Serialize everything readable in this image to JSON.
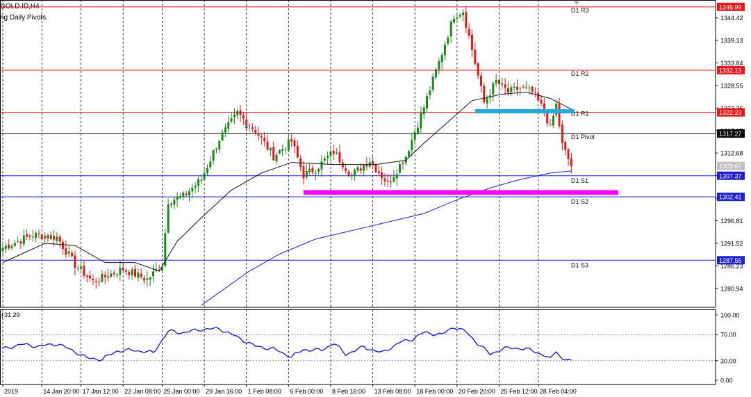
{
  "header": {
    "symbol_label": "GOLD.ID,H4",
    "indicator_label": "ng Daily Pivots."
  },
  "colors": {
    "up_candle": "#1a8a1a",
    "down_candle": "#e8181a",
    "resistance": "#e8181a",
    "support": "#1f1fd0",
    "pivot": "#000000",
    "ma_fast": "#111111",
    "ma_slow": "#1f1fd0",
    "rsi_line": "#1f1fd0",
    "zone_resistance": "#2aa8d8",
    "zone_support": "#ff00ff",
    "grid": "#000000"
  },
  "chart_data": [
    {
      "type": "candlestick",
      "title": "GOLD.ID,H4",
      "ylim": [
        1276.5,
        1348.6
      ],
      "price_ticks": [
        1344.42,
        1339.13,
        1333.84,
        1328.55,
        1323.26,
        1317.97,
        1312.68,
        1307.39,
        1302.1,
        1296.81,
        1291.52,
        1286.23,
        1280.94
      ],
      "pivots": [
        {
          "label": "D1 R3",
          "value": 1346.99,
          "kind": "resistance"
        },
        {
          "label": "D1 R2",
          "value": 1332.13,
          "kind": "resistance"
        },
        {
          "label": "D1 R1",
          "value": 1322.23,
          "kind": "resistance"
        },
        {
          "label": "D1 Pivot",
          "value": 1317.27,
          "kind": "pivot"
        },
        {
          "label": "D1 S1",
          "value": 1307.37,
          "kind": "support"
        },
        {
          "label": "D1 S2",
          "value": 1302.41,
          "kind": "support"
        },
        {
          "label": "D1 S3",
          "value": 1287.55,
          "kind": "support"
        }
      ],
      "current_price": "1309.67",
      "zones": [
        {
          "name": "resistance-zone",
          "price_low": 1322.0,
          "price_high": 1323.0
        },
        {
          "name": "support-zone",
          "price_low": 1302.9,
          "price_high": 1304.0
        }
      ],
      "anchors": [
        {
          "bar": 0,
          "price": 1290.5
        },
        {
          "bar": 10,
          "price": 1293.5
        },
        {
          "bar": 18,
          "price": 1293.0
        },
        {
          "bar": 24,
          "price": 1286.5
        },
        {
          "bar": 30,
          "price": 1282.5
        },
        {
          "bar": 40,
          "price": 1285.5
        },
        {
          "bar": 48,
          "price": 1283.0
        },
        {
          "bar": 53,
          "price": 1286.5
        },
        {
          "bar": 55,
          "price": 1301.5
        },
        {
          "bar": 60,
          "price": 1302.5
        },
        {
          "bar": 66,
          "price": 1306.5
        },
        {
          "bar": 72,
          "price": 1316.0
        },
        {
          "bar": 78,
          "price": 1322.0
        },
        {
          "bar": 84,
          "price": 1318.0
        },
        {
          "bar": 90,
          "price": 1312.0
        },
        {
          "bar": 96,
          "price": 1315.5
        },
        {
          "bar": 100,
          "price": 1307.5
        },
        {
          "bar": 104,
          "price": 1309.0
        },
        {
          "bar": 110,
          "price": 1313.0
        },
        {
          "bar": 116,
          "price": 1307.5
        },
        {
          "bar": 122,
          "price": 1311.0
        },
        {
          "bar": 128,
          "price": 1305.5
        },
        {
          "bar": 134,
          "price": 1312.0
        },
        {
          "bar": 140,
          "price": 1323.5
        },
        {
          "bar": 145,
          "price": 1334.0
        },
        {
          "bar": 150,
          "price": 1345.0
        },
        {
          "bar": 153,
          "price": 1346.0
        },
        {
          "bar": 156,
          "price": 1337.0
        },
        {
          "bar": 160,
          "price": 1324.5
        },
        {
          "bar": 164,
          "price": 1329.5
        },
        {
          "bar": 168,
          "price": 1327.0
        },
        {
          "bar": 172,
          "price": 1328.0
        },
        {
          "bar": 176,
          "price": 1327.0
        },
        {
          "bar": 180,
          "price": 1322.5
        },
        {
          "bar": 182,
          "price": 1318.5
        },
        {
          "bar": 184,
          "price": 1324.0
        },
        {
          "bar": 186,
          "price": 1314.5
        },
        {
          "bar": 189,
          "price": 1309.7
        }
      ],
      "ma_fast": [
        {
          "bar": 0,
          "price": 1287.0
        },
        {
          "bar": 14,
          "price": 1291.5
        },
        {
          "bar": 24,
          "price": 1291.0
        },
        {
          "bar": 34,
          "price": 1287.0
        },
        {
          "bar": 44,
          "price": 1287.0
        },
        {
          "bar": 52,
          "price": 1285.0
        },
        {
          "bar": 58,
          "price": 1292.0
        },
        {
          "bar": 66,
          "price": 1297.5
        },
        {
          "bar": 76,
          "price": 1304.0
        },
        {
          "bar": 86,
          "price": 1308.0
        },
        {
          "bar": 96,
          "price": 1310.5
        },
        {
          "bar": 110,
          "price": 1310.0
        },
        {
          "bar": 124,
          "price": 1310.0
        },
        {
          "bar": 134,
          "price": 1311.0
        },
        {
          "bar": 140,
          "price": 1315.0
        },
        {
          "bar": 148,
          "price": 1320.0
        },
        {
          "bar": 156,
          "price": 1325.0
        },
        {
          "bar": 166,
          "price": 1326.5
        },
        {
          "bar": 174,
          "price": 1327.0
        },
        {
          "bar": 182,
          "price": 1325.5
        },
        {
          "bar": 189,
          "price": 1323.0
        }
      ],
      "ma_slow": [
        {
          "bar": 66,
          "price": 1277.0
        },
        {
          "bar": 74,
          "price": 1281.0
        },
        {
          "bar": 82,
          "price": 1285.0
        },
        {
          "bar": 92,
          "price": 1289.0
        },
        {
          "bar": 104,
          "price": 1292.5
        },
        {
          "bar": 116,
          "price": 1294.5
        },
        {
          "bar": 128,
          "price": 1296.5
        },
        {
          "bar": 140,
          "price": 1298.5
        },
        {
          "bar": 152,
          "price": 1302.0
        },
        {
          "bar": 162,
          "price": 1304.5
        },
        {
          "bar": 172,
          "price": 1306.5
        },
        {
          "bar": 182,
          "price": 1308.0
        },
        {
          "bar": 189,
          "price": 1308.5
        }
      ],
      "bar_count": 190,
      "time_labels": [
        {
          "bar": 0,
          "label": "2019"
        },
        {
          "bar": 13,
          "label": "14 Jan 20:00"
        },
        {
          "bar": 26,
          "label": "17 Jan 12:00"
        },
        {
          "bar": 40,
          "label": "22 Jan 08:00"
        },
        {
          "bar": 53,
          "label": "25 Jan 00:00"
        },
        {
          "bar": 67,
          "label": "29 Jan 16:00"
        },
        {
          "bar": 81,
          "label": "1 Feb 08:00"
        },
        {
          "bar": 95,
          "label": "6 Feb 00:00"
        },
        {
          "bar": 109,
          "label": "8 Feb 16:00"
        },
        {
          "bar": 123,
          "label": "13 Feb 08:00"
        },
        {
          "bar": 137,
          "label": "18 Feb 00:00"
        },
        {
          "bar": 151,
          "label": "20 Feb 20:00"
        },
        {
          "bar": 165,
          "label": "25 Feb 12:00"
        },
        {
          "bar": 178,
          "label": "28 Feb 04:00"
        }
      ]
    },
    {
      "type": "line",
      "title": "31.29",
      "ylim": [
        0,
        100
      ],
      "ticks": [
        100.0,
        70.0,
        30.0,
        0.0
      ],
      "levels": [
        70,
        30
      ],
      "last_value": 31.29,
      "anchors": [
        {
          "bar": 0,
          "value": 48
        },
        {
          "bar": 6,
          "value": 55
        },
        {
          "bar": 12,
          "value": 52
        },
        {
          "bar": 18,
          "value": 56
        },
        {
          "bar": 24,
          "value": 44
        },
        {
          "bar": 28,
          "value": 34
        },
        {
          "bar": 33,
          "value": 32
        },
        {
          "bar": 38,
          "value": 45
        },
        {
          "bar": 44,
          "value": 46
        },
        {
          "bar": 50,
          "value": 42
        },
        {
          "bar": 55,
          "value": 75
        },
        {
          "bar": 60,
          "value": 73
        },
        {
          "bar": 66,
          "value": 78
        },
        {
          "bar": 72,
          "value": 79
        },
        {
          "bar": 78,
          "value": 66
        },
        {
          "bar": 84,
          "value": 52
        },
        {
          "bar": 90,
          "value": 48
        },
        {
          "bar": 96,
          "value": 36
        },
        {
          "bar": 100,
          "value": 47
        },
        {
          "bar": 106,
          "value": 46
        },
        {
          "bar": 110,
          "value": 57
        },
        {
          "bar": 114,
          "value": 40
        },
        {
          "bar": 120,
          "value": 51
        },
        {
          "bar": 126,
          "value": 42
        },
        {
          "bar": 132,
          "value": 58
        },
        {
          "bar": 136,
          "value": 63
        },
        {
          "bar": 140,
          "value": 73
        },
        {
          "bar": 146,
          "value": 70
        },
        {
          "bar": 150,
          "value": 82
        },
        {
          "bar": 154,
          "value": 74
        },
        {
          "bar": 158,
          "value": 56
        },
        {
          "bar": 162,
          "value": 40
        },
        {
          "bar": 166,
          "value": 48
        },
        {
          "bar": 170,
          "value": 50
        },
        {
          "bar": 176,
          "value": 46
        },
        {
          "bar": 180,
          "value": 38
        },
        {
          "bar": 182,
          "value": 32
        },
        {
          "bar": 184,
          "value": 46
        },
        {
          "bar": 186,
          "value": 32
        },
        {
          "bar": 189,
          "value": 31.29
        }
      ]
    }
  ]
}
